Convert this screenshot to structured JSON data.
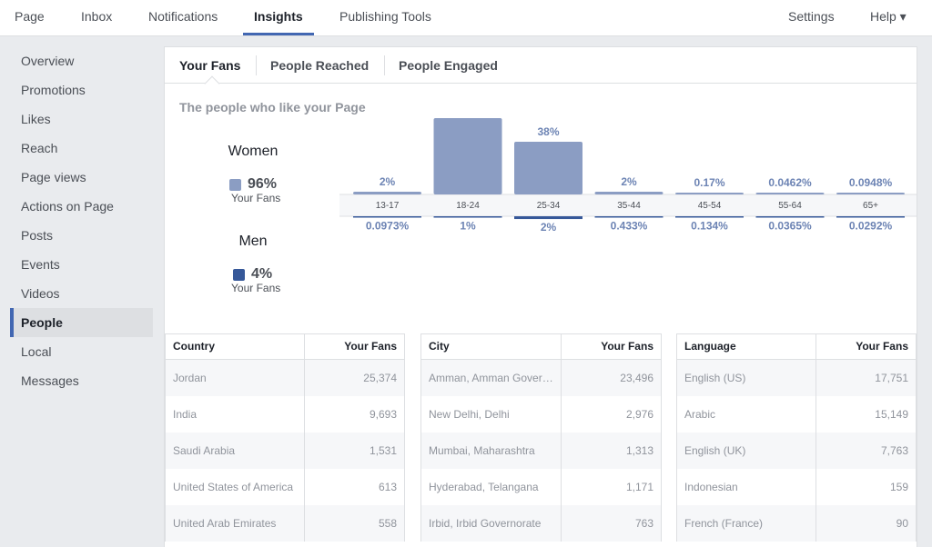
{
  "topnav": {
    "page": "Page",
    "inbox": "Inbox",
    "notifications": "Notifications",
    "insights": "Insights",
    "publishing_tools": "Publishing Tools",
    "settings": "Settings",
    "help": "Help ▾"
  },
  "sidebar": {
    "items": [
      {
        "label": "Overview"
      },
      {
        "label": "Promotions"
      },
      {
        "label": "Likes"
      },
      {
        "label": "Reach"
      },
      {
        "label": "Page views"
      },
      {
        "label": "Actions on Page"
      },
      {
        "label": "Posts"
      },
      {
        "label": "Events"
      },
      {
        "label": "Videos"
      },
      {
        "label": "People"
      },
      {
        "label": "Local"
      },
      {
        "label": "Messages"
      }
    ],
    "active_index": 9
  },
  "subtabs": {
    "your_fans": "Your Fans",
    "people_reached": "People Reached",
    "people_engaged": "People Engaged"
  },
  "section_title": "The people who like your Page",
  "gender": {
    "women": {
      "label": "Women",
      "pct": "96%",
      "sub": "Your Fans",
      "color": "#8b9dc3"
    },
    "men": {
      "label": "Men",
      "pct": "4%",
      "sub": "Your Fans",
      "color": "#365899"
    }
  },
  "chart_data": {
    "type": "bar",
    "categories": [
      "13-17",
      "18-24",
      "25-34",
      "35-44",
      "45-54",
      "55-64",
      "65+"
    ],
    "series": [
      {
        "name": "Women",
        "values": [
          2,
          55,
          38,
          2,
          0.17,
          0.0462,
          0.0948
        ],
        "labels": [
          "2%",
          "55%",
          "38%",
          "2%",
          "0.17%",
          "0.0462%",
          "0.0948%"
        ],
        "color": "#8b9dc3"
      },
      {
        "name": "Men",
        "values": [
          0.0973,
          1,
          2,
          0.433,
          0.134,
          0.0365,
          0.0292
        ],
        "labels": [
          "0.0973%",
          "1%",
          "2%",
          "0.433%",
          "0.134%",
          "0.0365%",
          "0.0292%"
        ],
        "color": "#365899"
      }
    ],
    "ylim": [
      0,
      55
    ]
  },
  "tables": [
    {
      "col1": "Country",
      "col2": "Your Fans",
      "rows": [
        {
          "name": "Jordan",
          "value": "25,374"
        },
        {
          "name": "India",
          "value": "9,693"
        },
        {
          "name": "Saudi Arabia",
          "value": "1,531"
        },
        {
          "name": "United States of America",
          "value": "613"
        },
        {
          "name": "United Arab Emirates",
          "value": "558"
        }
      ]
    },
    {
      "col1": "City",
      "col2": "Your Fans",
      "rows": [
        {
          "name": "Amman, Amman Gover…",
          "value": "23,496"
        },
        {
          "name": "New Delhi, Delhi",
          "value": "2,976"
        },
        {
          "name": "Mumbai, Maharashtra",
          "value": "1,313"
        },
        {
          "name": "Hyderabad, Telangana",
          "value": "1,171"
        },
        {
          "name": "Irbid, Irbid Governorate",
          "value": "763"
        }
      ]
    },
    {
      "col1": "Language",
      "col2": "Your Fans",
      "rows": [
        {
          "name": "English (US)",
          "value": "17,751"
        },
        {
          "name": "Arabic",
          "value": "15,149"
        },
        {
          "name": "English (UK)",
          "value": "7,763"
        },
        {
          "name": "Indonesian",
          "value": "159"
        },
        {
          "name": "French (France)",
          "value": "90"
        }
      ]
    }
  ]
}
